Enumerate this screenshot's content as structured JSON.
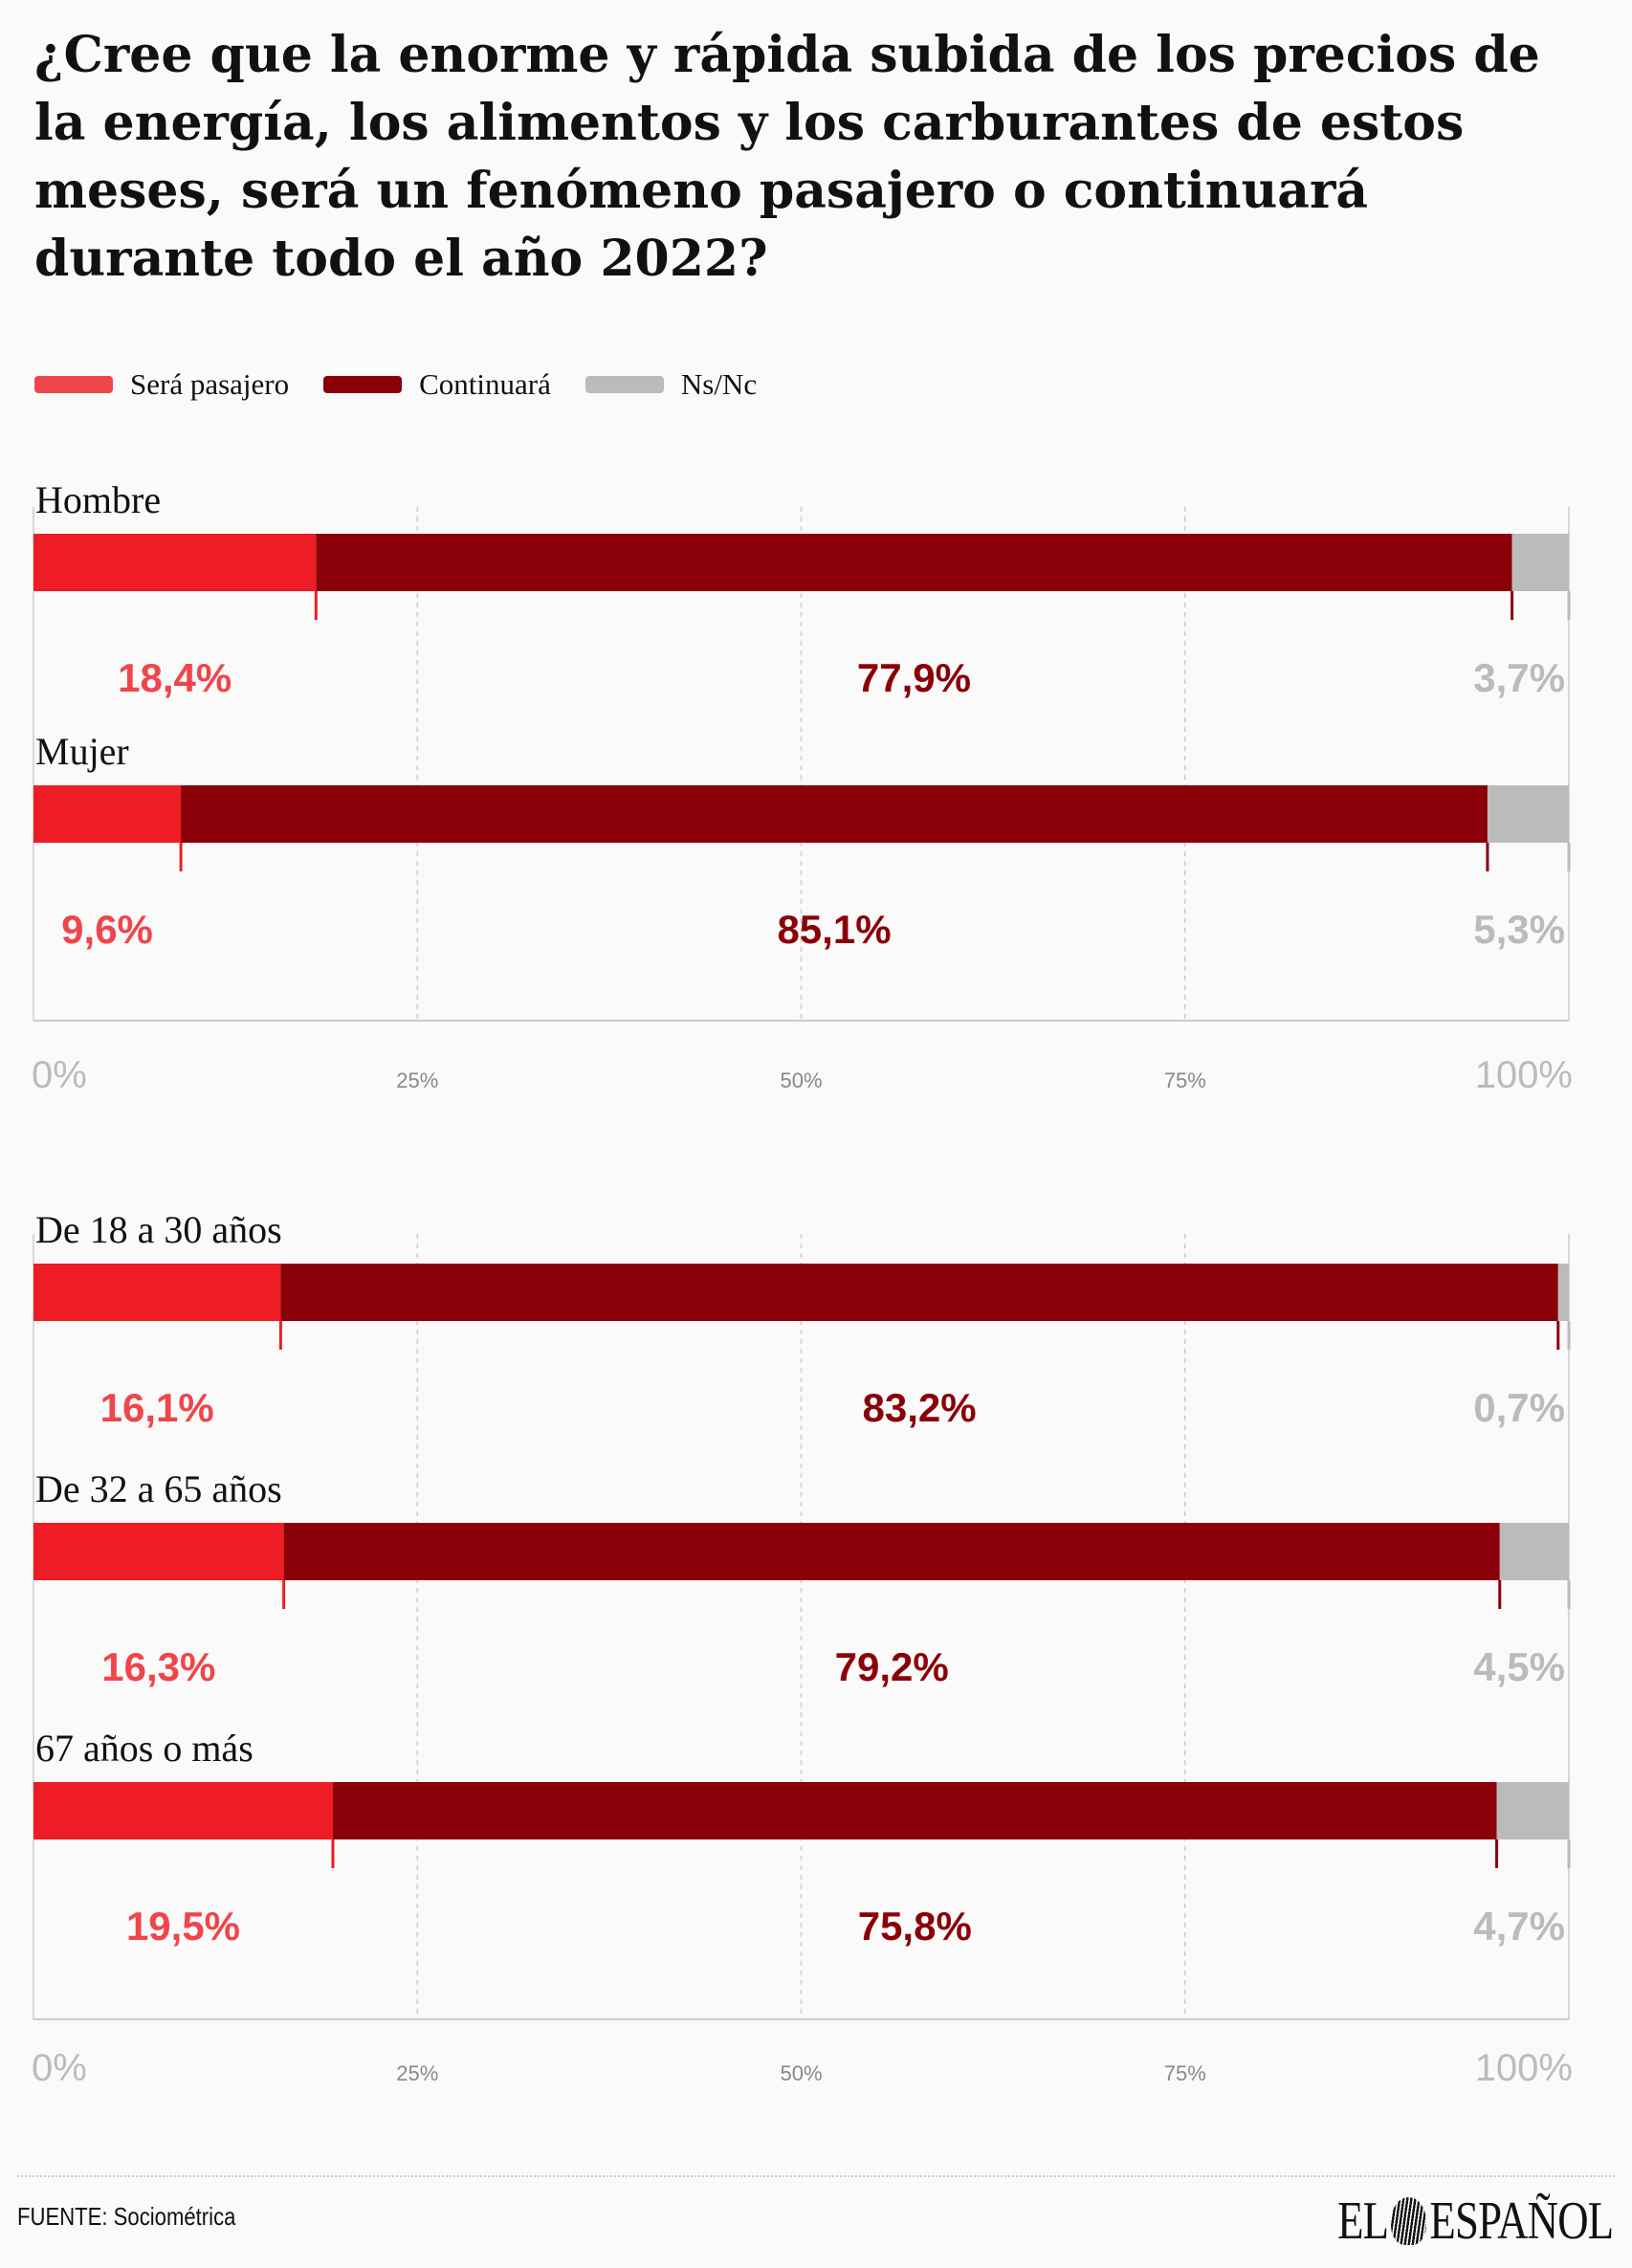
{
  "title": "¿Cree que la enorme y rápida subida de los  precios de la energía, los alimentos y los  carburantes de estos meses, será un fenómeno  pasajero o continuará durante todo el año 2022?",
  "legend": [
    {
      "label": "Será pasajero",
      "color": "#f0454a"
    },
    {
      "label": "Continuará",
      "color": "#8b0008"
    },
    {
      "label": "Ns/Nc",
      "color": "#bbbbbb"
    }
  ],
  "chart_data": {
    "type": "bar",
    "stacked": true,
    "orientation": "horizontal",
    "series_names": [
      "Será pasajero",
      "Continuará",
      "Ns/Nc"
    ],
    "colors": {
      "bars": [
        "#ee1c25",
        "#8b0008",
        "#bbbbbb"
      ],
      "labels": [
        "#ee1c25",
        "#8b0008",
        "#bbbbbb"
      ]
    },
    "panels": [
      {
        "groups": [
          {
            "name": "Hombre",
            "values": [
              18.4,
              77.9,
              3.7
            ],
            "labels": [
              "18,4%",
              "77,9%",
              "3,7%"
            ]
          },
          {
            "name": "Mujer",
            "values": [
              9.6,
              85.1,
              5.3
            ],
            "labels": [
              "9,6%",
              "85,1%",
              "5,3%"
            ]
          }
        ],
        "ticks": [
          "0%",
          "25%",
          "50%",
          "75%",
          "100%"
        ]
      },
      {
        "groups": [
          {
            "name": "De 18 a 30 años",
            "values": [
              16.1,
              83.2,
              0.7
            ],
            "labels": [
              "16,1%",
              "83,2%",
              "0,7%"
            ]
          },
          {
            "name": "De 32 a 65 años",
            "values": [
              16.3,
              79.2,
              4.5
            ],
            "labels": [
              "16,3%",
              "79,2%",
              "4,5%"
            ]
          },
          {
            "name": "67 años o más",
            "values": [
              19.5,
              75.8,
              4.7
            ],
            "labels": [
              "19,5%",
              "75,8%",
              "4,7%"
            ]
          }
        ],
        "ticks": [
          "0%",
          "25%",
          "50%",
          "75%",
          "100%"
        ]
      }
    ],
    "xlim": [
      0,
      100
    ]
  },
  "footer": {
    "source": "FUENTE: Sociométrica",
    "logo_left": "EL",
    "logo_right": "ESPAÑOL"
  }
}
